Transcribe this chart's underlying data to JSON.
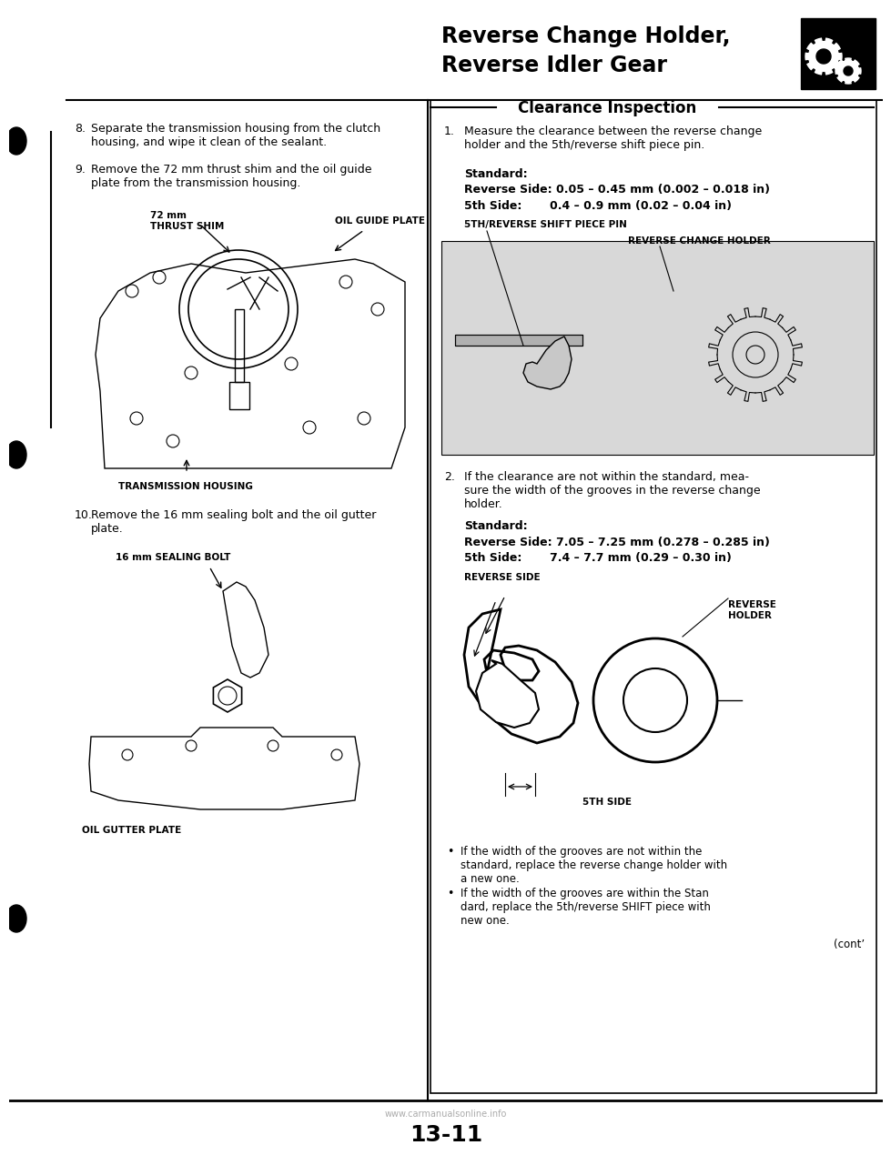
{
  "page_number": "13-11",
  "title_right_line1": "Reverse Change Holder,",
  "title_right_line2": "Reverse Idler Gear",
  "section_title": "Clearance Inspection",
  "bg_color": "#ffffff",
  "left_panel": {
    "step8_text_num": "8.",
    "step8_text": "Separate the transmission housing from the clutch\nhousing, and wipe it clean of the sealant.",
    "step9_text_num": "9.",
    "step9_text": "Remove the 72 mm thrust shim and the oil guide\nplate from the transmission housing.",
    "label_thrust_shim": "72 mm\nTHRUST SHIM",
    "label_oil_guide": "OIL GUIDE PLATE",
    "label_trans_housing": "TRANSMISSION HOUSING",
    "step10_text_num": "10.",
    "step10_text": "Remove the 16 mm sealing bolt and the oil gutter\nplate.",
    "label_sealing_bolt": "16 mm SEALING BOLT",
    "label_oil_gutter": "OIL GUTTER PLATE"
  },
  "right_panel": {
    "step1_num": "1.",
    "step1_text": "Measure the clearance between the reverse change\nholder and the 5th/reverse shift piece pin.",
    "standard_label": "Standard:",
    "standard_reverse": "Reverse Side: 0.05 – 0.45 mm (0.002 – 0.018 in)",
    "standard_5th": "5th Side:       0.4 – 0.9 mm (0.02 – 0.04 in)",
    "label_shift_piece_pin": "5TH/REVERSE SHIFT PIECE PIN",
    "label_reverse_change_holder": "REVERSE CHANGE HOLDER",
    "step2_num": "2.",
    "step2_text": "If the clearance are not within the standard, mea-\nsure the width of the grooves in the reverse change\nholder.",
    "standard2_label": "Standard:",
    "standard2_reverse": "Reverse Side: 7.05 – 7.25 mm (0.278 – 0.285 in)",
    "standard2_5th": "5th Side:       7.4 – 7.7 mm (0.29 – 0.30 in)",
    "label_reverse_side": "REVERSE SIDE",
    "label_reverse_holder": "REVERSE\nHOLDER",
    "label_5th_side": "5TH SIDE",
    "bullet1": "If the width of the grooves are not within the\nstandard, replace the reverse change holder with\na new one.",
    "bullet2": "If the width of the grooves are within the Stan\ndard, replace the 5th/reverse SHIFT piece with\nnew one.",
    "cont_label": "(cont’"
  },
  "footer_watermark": "www.carmanualsonline.info"
}
